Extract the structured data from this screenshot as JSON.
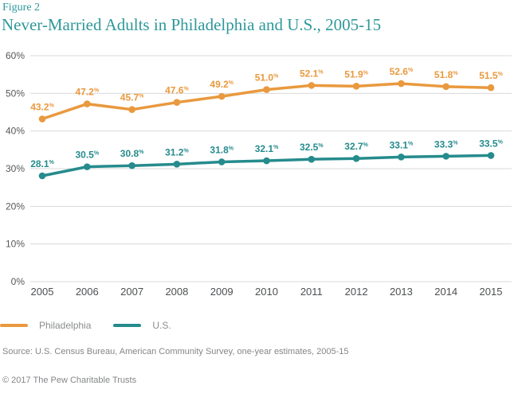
{
  "header": {
    "figure_label": "Figure 2",
    "title": "Never-Married Adults in Philadelphia and U.S., 2005-15"
  },
  "footer": {
    "source": "Source: U.S. Census Bureau, American Community Survey, one-year estimates, 2005-15",
    "copyright": "© 2017 The Pew Charitable Trusts"
  },
  "colors": {
    "title_teal": "#2f989a",
    "philadelphia_orange": "#e9993e",
    "us_teal": "#268b8d",
    "gridline": "#d9dadb",
    "axis_text": "#56585a",
    "muted_text": "#8a8c8e"
  },
  "chart_data": {
    "type": "line",
    "title": "Never-Married Adults in Philadelphia and U.S., 2005-15",
    "figure_label": "Figure 2",
    "categories": [
      "2005",
      "2006",
      "2007",
      "2008",
      "2009",
      "2010",
      "2011",
      "2012",
      "2013",
      "2014",
      "2015"
    ],
    "series": [
      {
        "name": "Philadelphia",
        "color": "#e9993e",
        "values": [
          43.2,
          47.2,
          45.7,
          47.6,
          49.2,
          51.0,
          52.1,
          51.9,
          52.6,
          51.8,
          51.5
        ]
      },
      {
        "name": "U.S.",
        "color": "#268b8d",
        "values": [
          28.1,
          30.5,
          30.8,
          31.2,
          31.8,
          32.1,
          32.5,
          32.7,
          33.1,
          33.3,
          33.5
        ]
      }
    ],
    "xlabel": "",
    "ylabel": "",
    "ylim": [
      0,
      60
    ],
    "ytick_step": 10,
    "ytick_suffix": "%",
    "value_decimals": 1,
    "value_label_suffix": "%",
    "grid": true,
    "legend_position": "bottom-left"
  }
}
